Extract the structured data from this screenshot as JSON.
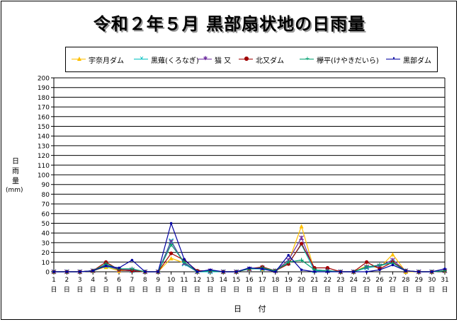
{
  "title": "令和２年５月 黒部扇状地の日雨量",
  "ylabel_chars": [
    "日",
    "雨",
    "量"
  ],
  "ylabel_unit": "(mm)",
  "xlabel": "日 付",
  "chart_data": {
    "type": "line",
    "title": "令和２年５月 黒部扇状地の日雨量",
    "xlabel": "日 付",
    "ylabel": "日雨量 (mm)",
    "ylim": [
      0,
      200
    ],
    "ytick_step": 10,
    "grid": true,
    "legend": "top",
    "x": [
      1,
      2,
      3,
      4,
      5,
      6,
      7,
      8,
      9,
      10,
      11,
      12,
      13,
      14,
      15,
      16,
      17,
      18,
      19,
      20,
      21,
      22,
      23,
      24,
      25,
      26,
      27,
      28,
      29,
      30,
      31
    ],
    "xtick_suffix": "日",
    "series": [
      {
        "name": "宇奈月ダム",
        "color": "#ffc000",
        "marker": "triangle",
        "values": [
          0,
          0,
          0,
          1,
          5,
          1,
          2,
          0,
          0,
          14,
          9,
          0,
          1,
          0,
          0,
          3,
          3,
          1,
          10,
          47,
          1,
          1,
          0,
          0,
          6,
          4,
          18,
          0,
          0,
          0,
          1
        ]
      },
      {
        "name": "黒薙(くろなぎ)",
        "color": "#00c0c0",
        "marker": "x",
        "values": [
          0,
          0,
          0,
          1,
          6,
          2,
          1,
          0,
          0,
          32,
          8,
          0,
          0,
          0,
          0,
          3,
          3,
          1,
          9,
          28,
          1,
          1,
          0,
          0,
          4,
          6,
          10,
          1,
          0,
          0,
          1
        ]
      },
      {
        "name": "猫 又",
        "color": "#7030a0",
        "marker": "star",
        "values": [
          0,
          0,
          0,
          1,
          7,
          2,
          2,
          0,
          0,
          31,
          9,
          0,
          1,
          0,
          0,
          3,
          4,
          1,
          12,
          35,
          2,
          1,
          0,
          0,
          5,
          6,
          12,
          1,
          0,
          0,
          1
        ]
      },
      {
        "name": "北又ダム",
        "color": "#a00000",
        "marker": "circle",
        "values": [
          0,
          0,
          0,
          1,
          10,
          2,
          1,
          0,
          0,
          19,
          12,
          1,
          1,
          0,
          0,
          3,
          5,
          1,
          8,
          29,
          4,
          4,
          0,
          0,
          10,
          3,
          10,
          1,
          0,
          0,
          1
        ]
      },
      {
        "name": "欅平(けやきだいら)",
        "color": "#00a070",
        "marker": "plus",
        "values": [
          0,
          0,
          0,
          1,
          8,
          3,
          3,
          0,
          0,
          28,
          10,
          0,
          1,
          0,
          0,
          3,
          4,
          1,
          10,
          12,
          2,
          1,
          0,
          0,
          5,
          7,
          9,
          1,
          0,
          0,
          1
        ]
      },
      {
        "name": "黒部ダム",
        "color": "#0000a0",
        "marker": "dot",
        "values": [
          0,
          0,
          0,
          1,
          6,
          4,
          12,
          0,
          0,
          50,
          13,
          0,
          2,
          0,
          0,
          4,
          3,
          0,
          17,
          2,
          0,
          0,
          0,
          0,
          0,
          2,
          7,
          1,
          0,
          0,
          3
        ]
      }
    ]
  }
}
